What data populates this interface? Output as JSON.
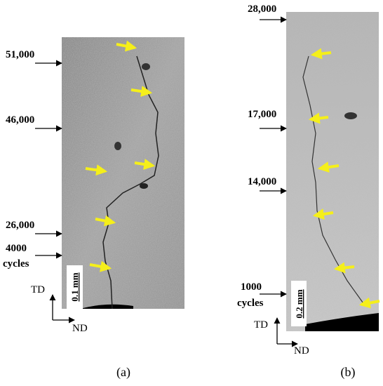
{
  "panels": [
    {
      "id": "a",
      "caption": "(a)",
      "marks": [
        "51,000",
        "46,000",
        "26,000"
      ],
      "start_label": [
        "4000",
        "cycles"
      ],
      "scale_bar": "0.1 mm",
      "axis_vertical": "TD",
      "axis_horizontal": "ND"
    },
    {
      "id": "b",
      "caption": "(b)",
      "marks": [
        "28,000",
        "17,000",
        "14,000"
      ],
      "start_label": [
        "1000",
        "cycles"
      ],
      "scale_bar": "0.2 mm",
      "axis_vertical": "TD",
      "axis_horizontal": "ND"
    }
  ]
}
